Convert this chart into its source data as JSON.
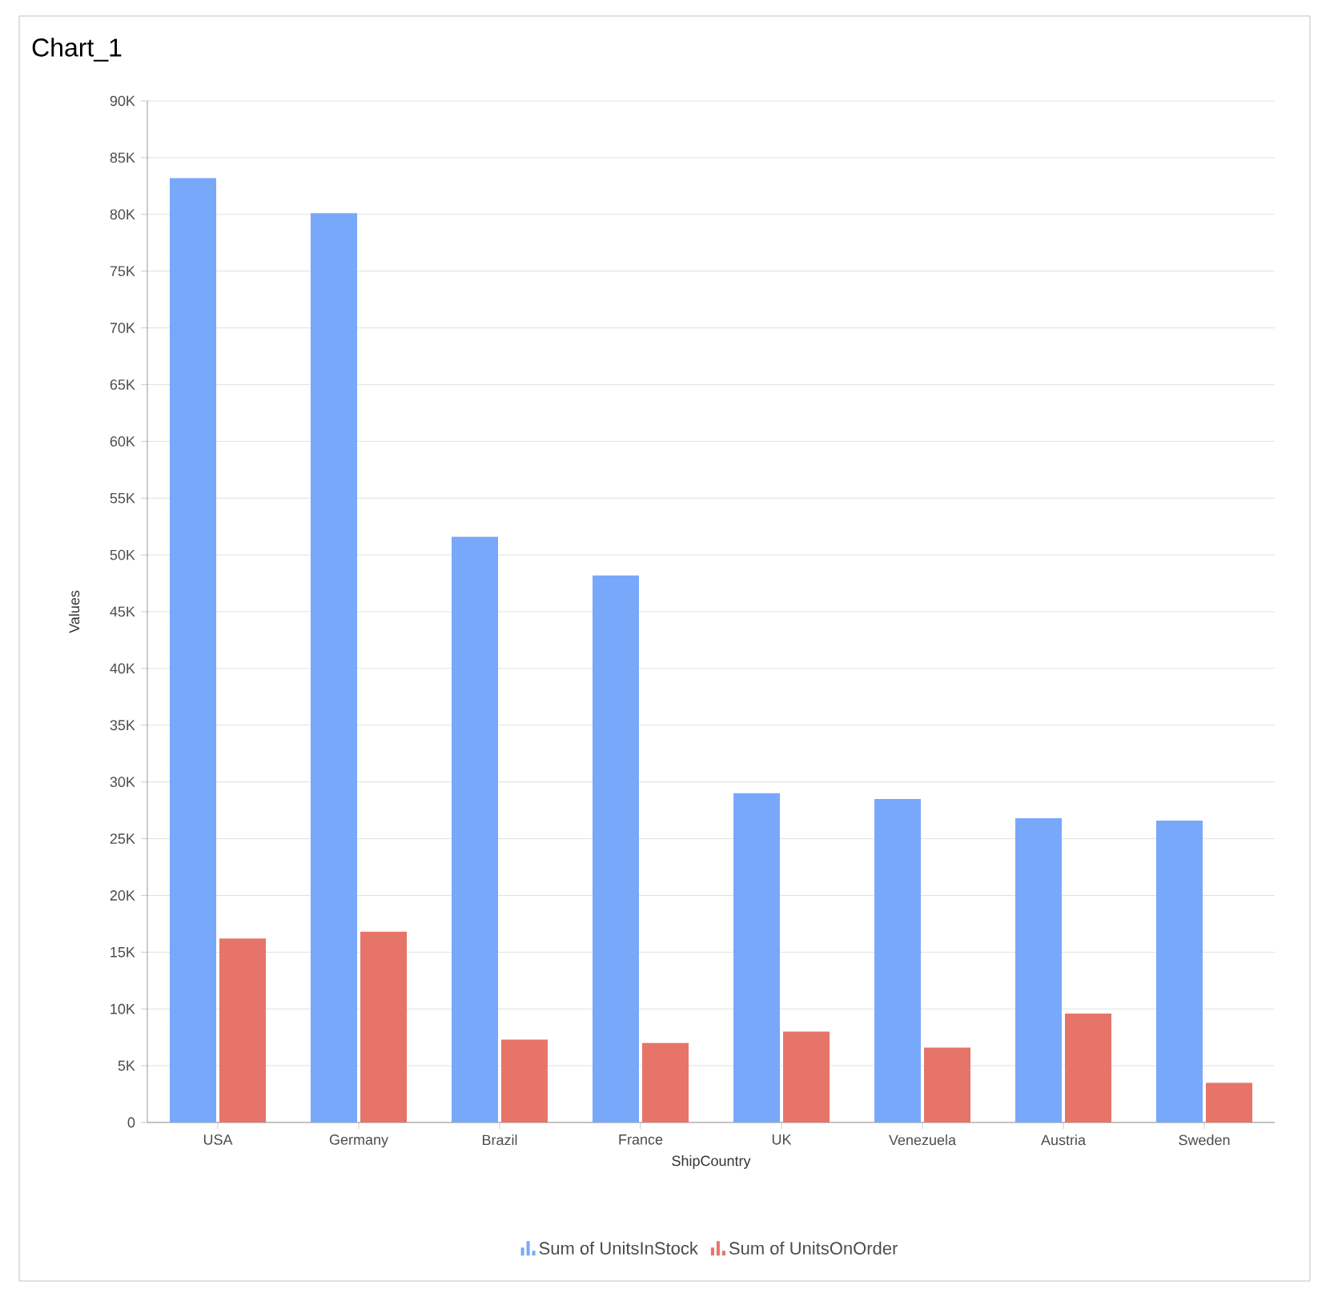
{
  "chart_data": {
    "type": "bar",
    "title": "Chart_1",
    "xlabel": "ShipCountry",
    "ylabel": "Values",
    "categories": [
      "USA",
      "Germany",
      "Brazil",
      "France",
      "UK",
      "Venezuela",
      "Austria",
      "Sweden"
    ],
    "series": [
      {
        "name": "Sum of UnitsInStock",
        "color": "#78a8fa",
        "values": [
          83200,
          80100,
          51600,
          48200,
          29000,
          28500,
          26800,
          26600
        ]
      },
      {
        "name": "Sum of UnitsOnOrder",
        "color": "#e77468",
        "values": [
          16200,
          16800,
          7300,
          7000,
          8000,
          6600,
          9600,
          3500
        ]
      }
    ],
    "ylim": [
      0,
      90000
    ],
    "yticks": [
      0,
      {
        "value": 5000,
        "label": "5K"
      },
      {
        "value": 10000,
        "label": "10K"
      },
      {
        "value": 15000,
        "label": "15K"
      },
      {
        "value": 20000,
        "label": "20K"
      },
      {
        "value": 25000,
        "label": "25K"
      },
      {
        "value": 30000,
        "label": "30K"
      },
      {
        "value": 35000,
        "label": "35K"
      },
      {
        "value": 40000,
        "label": "40K"
      },
      {
        "value": 45000,
        "label": "45K"
      },
      {
        "value": 50000,
        "label": "50K"
      },
      {
        "value": 55000,
        "label": "55K"
      },
      {
        "value": 60000,
        "label": "60K"
      },
      {
        "value": 65000,
        "label": "65K"
      },
      {
        "value": 70000,
        "label": "70K"
      },
      {
        "value": 75000,
        "label": "75K"
      },
      {
        "value": 80000,
        "label": "80K"
      },
      {
        "value": 85000,
        "label": "85K"
      },
      {
        "value": 90000,
        "label": "90K"
      }
    ],
    "grid": "y",
    "legend": "bottom"
  }
}
